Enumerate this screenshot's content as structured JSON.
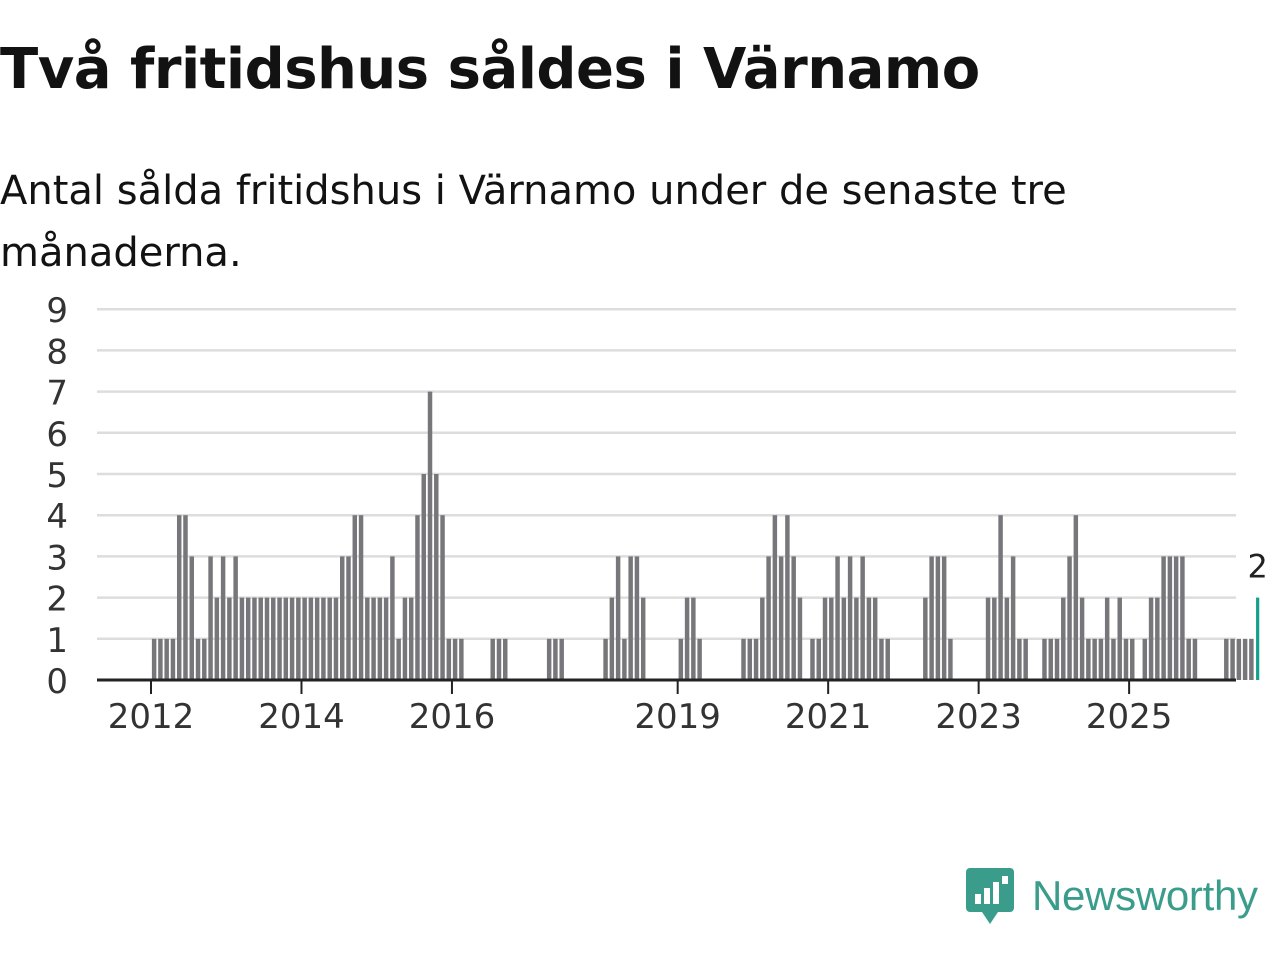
{
  "title": "Två fritidshus såldes i Värnamo",
  "subtitle": "Antal sålda fritidshus i Värnamo under de senaste tre månaderna.",
  "brand": {
    "name": "Newsworthy",
    "icon": "newsworthy-logo-icon",
    "color": "#3a9d8c"
  },
  "colors": {
    "bar": "#77767b",
    "highlight": "#13a08b",
    "grid": "#dddddd",
    "axis": "#222222"
  },
  "chart_data": {
    "type": "bar",
    "title": "Två fritidshus såldes i Värnamo",
    "xlabel": "",
    "ylabel": "",
    "ylim": [
      0,
      9
    ],
    "yticks": [
      0,
      1,
      2,
      3,
      4,
      5,
      6,
      7,
      8,
      9
    ],
    "grid": true,
    "x_start": "2011-01",
    "x_tick_labels": [
      {
        "label": "2012",
        "month_index": 12
      },
      {
        "label": "2014",
        "month_index": 36
      },
      {
        "label": "2016",
        "month_index": 60
      },
      {
        "label": "2019",
        "month_index": 96
      },
      {
        "label": "2021",
        "month_index": 120
      },
      {
        "label": "2023",
        "month_index": 144
      },
      {
        "label": "2025",
        "month_index": 168
      }
    ],
    "values": [
      0,
      0,
      0,
      0,
      0,
      0,
      0,
      0,
      0,
      0,
      0,
      0,
      1,
      1,
      1,
      1,
      4,
      4,
      3,
      1,
      1,
      3,
      2,
      3,
      2,
      3,
      2,
      2,
      2,
      2,
      2,
      2,
      2,
      2,
      2,
      2,
      2,
      2,
      2,
      2,
      2,
      2,
      3,
      3,
      4,
      4,
      2,
      2,
      2,
      2,
      3,
      1,
      2,
      2,
      4,
      5,
      7,
      5,
      4,
      1,
      1,
      1,
      0,
      0,
      0,
      0,
      1,
      1,
      1,
      0,
      0,
      0,
      0,
      0,
      0,
      1,
      1,
      1,
      0,
      0,
      0,
      0,
      0,
      0,
      1,
      2,
      3,
      1,
      3,
      3,
      2,
      0,
      0,
      0,
      0,
      0,
      1,
      2,
      2,
      1,
      0,
      0,
      0,
      0,
      0,
      0,
      1,
      1,
      1,
      2,
      3,
      4,
      3,
      4,
      3,
      2,
      0,
      1,
      1,
      2,
      2,
      3,
      2,
      3,
      2,
      3,
      2,
      2,
      1,
      1,
      0,
      0,
      0,
      0,
      0,
      2,
      3,
      3,
      3,
      1,
      0,
      0,
      0,
      0,
      0,
      2,
      2,
      4,
      2,
      3,
      1,
      1,
      0,
      0,
      1,
      1,
      1,
      2,
      3,
      4,
      2,
      1,
      1,
      1,
      2,
      1,
      2,
      1,
      1,
      0,
      1,
      2,
      2,
      3,
      3,
      3,
      3,
      1,
      1,
      0,
      0,
      0,
      0,
      1,
      1,
      1,
      1,
      1,
      2
    ],
    "highlight_last": true,
    "annotations": [
      {
        "text": "2",
        "target": "last-bar"
      }
    ]
  }
}
